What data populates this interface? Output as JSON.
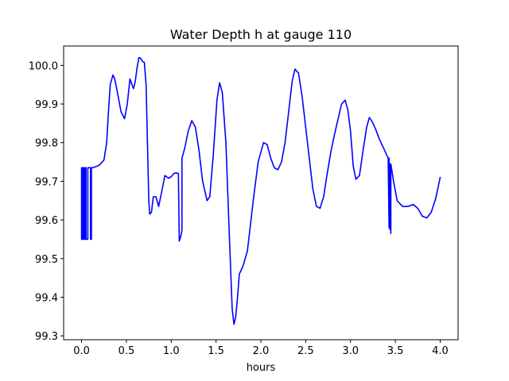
{
  "chart_data": {
    "type": "line",
    "title": "Water Depth h at gauge 110",
    "xlabel": "hours",
    "ylabel": "",
    "xlim": [
      -0.2,
      4.2
    ],
    "ylim": [
      99.29,
      100.05
    ],
    "xticks": [
      0.0,
      0.5,
      1.0,
      1.5,
      2.0,
      2.5,
      3.0,
      3.5,
      4.0
    ],
    "xtick_labels": [
      "0.0",
      "0.5",
      "1.0",
      "1.5",
      "2.0",
      "2.5",
      "3.0",
      "3.5",
      "4.0"
    ],
    "yticks": [
      99.3,
      99.4,
      99.5,
      99.6,
      99.7,
      99.8,
      99.9,
      100.0
    ],
    "ytick_labels": [
      "99.3",
      "99.4",
      "99.5",
      "99.6",
      "99.7",
      "99.8",
      "99.9",
      "100.0"
    ],
    "grid": false,
    "series": [
      {
        "color": "#0000ff",
        "x": [
          0.0,
          0.0,
          0.01,
          0.01,
          0.02,
          0.02,
          0.03,
          0.03,
          0.04,
          0.04,
          0.05,
          0.05,
          0.07,
          0.07,
          0.1,
          0.1,
          0.11,
          0.11,
          0.12,
          0.12,
          0.15,
          0.2,
          0.25,
          0.28,
          0.3,
          0.32,
          0.35,
          0.37,
          0.4,
          0.44,
          0.48,
          0.51,
          0.54,
          0.57,
          0.58,
          0.6,
          0.62,
          0.64,
          0.66,
          0.68,
          0.7,
          0.72,
          0.74,
          0.75,
          0.76,
          0.78,
          0.8,
          0.83,
          0.86,
          0.9,
          0.93,
          0.97,
          1.0,
          1.03,
          1.05,
          1.08,
          1.09,
          1.09,
          1.11,
          1.12,
          1.12,
          1.15,
          1.19,
          1.23,
          1.27,
          1.31,
          1.35,
          1.4,
          1.43,
          1.47,
          1.51,
          1.54,
          1.57,
          1.61,
          1.65,
          1.68,
          1.7,
          1.72,
          1.74,
          1.76,
          1.8,
          1.85,
          1.92,
          1.97,
          2.03,
          2.07,
          2.11,
          2.15,
          2.19,
          2.23,
          2.27,
          2.31,
          2.35,
          2.38,
          2.42,
          2.46,
          2.5,
          2.54,
          2.58,
          2.62,
          2.66,
          2.7,
          2.74,
          2.78,
          2.82,
          2.86,
          2.9,
          2.94,
          2.97,
          3.0,
          3.03,
          3.06,
          3.1,
          3.14,
          3.18,
          3.21,
          3.24,
          3.28,
          3.32,
          3.36,
          3.4,
          3.42,
          3.43,
          3.43,
          3.44,
          3.44,
          3.45,
          3.45,
          3.46,
          3.48,
          3.52,
          3.58,
          3.64,
          3.7,
          3.75,
          3.8,
          3.85,
          3.9,
          3.95,
          4.0
        ],
        "y": [
          99.55,
          99.735,
          99.735,
          99.55,
          99.55,
          99.735,
          99.735,
          99.55,
          99.55,
          99.735,
          99.735,
          99.55,
          99.55,
          99.735,
          99.735,
          99.55,
          99.55,
          99.735,
          99.735,
          99.735,
          99.737,
          99.742,
          99.755,
          99.8,
          99.88,
          99.95,
          99.975,
          99.965,
          99.93,
          99.88,
          99.862,
          99.9,
          99.965,
          99.945,
          99.94,
          99.96,
          99.995,
          100.02,
          100.018,
          100.01,
          100.008,
          99.95,
          99.75,
          99.65,
          99.615,
          99.62,
          99.66,
          99.66,
          99.635,
          99.68,
          99.715,
          99.708,
          99.712,
          99.72,
          99.722,
          99.72,
          99.545,
          99.545,
          99.56,
          99.575,
          99.76,
          99.785,
          99.83,
          99.857,
          99.84,
          99.78,
          99.7,
          99.65,
          99.66,
          99.77,
          99.91,
          99.955,
          99.93,
          99.8,
          99.55,
          99.37,
          99.33,
          99.35,
          99.4,
          99.46,
          99.48,
          99.52,
          99.66,
          99.75,
          99.8,
          99.795,
          99.76,
          99.735,
          99.73,
          99.75,
          99.8,
          99.88,
          99.96,
          99.99,
          99.98,
          99.92,
          99.84,
          99.76,
          99.68,
          99.635,
          99.63,
          99.66,
          99.72,
          99.775,
          99.82,
          99.86,
          99.9,
          99.91,
          99.885,
          99.83,
          99.74,
          99.705,
          99.715,
          99.78,
          99.84,
          99.865,
          99.855,
          99.835,
          99.81,
          99.79,
          99.77,
          99.76,
          99.58,
          99.76,
          99.575,
          99.745,
          99.565,
          99.745,
          99.73,
          99.7,
          99.65,
          99.635,
          99.635,
          99.64,
          99.63,
          99.61,
          99.605,
          99.62,
          99.655,
          99.71
        ]
      }
    ]
  }
}
